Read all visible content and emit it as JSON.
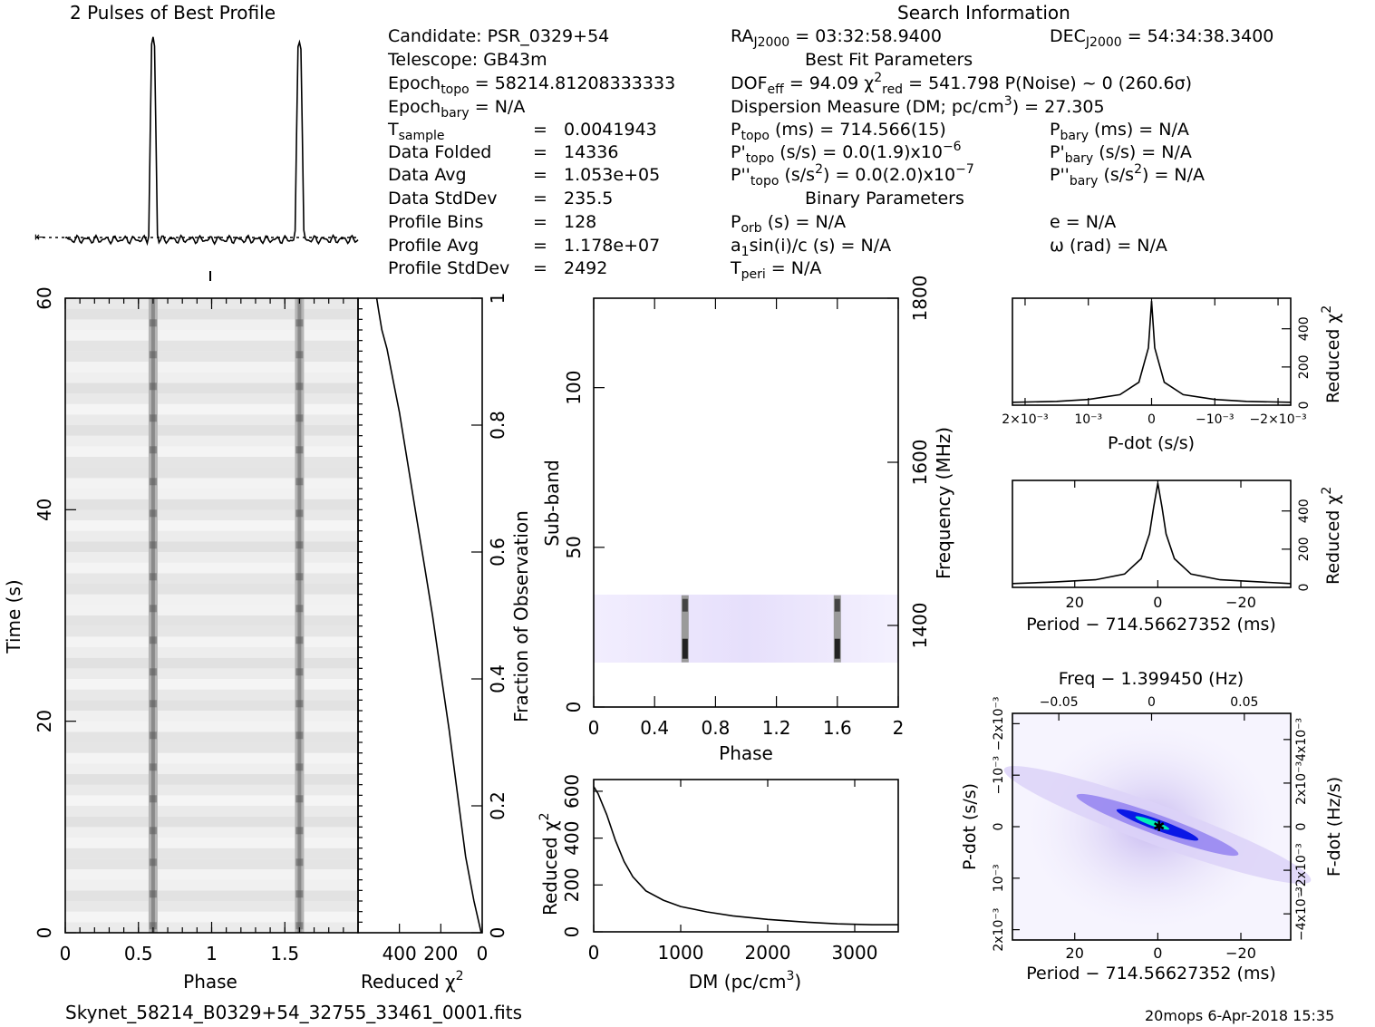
{
  "header": {
    "profile_title": "2 Pulses of Best Profile",
    "search_title": "Search Information",
    "best_fit_title": "Best Fit Parameters",
    "binary_title": "Binary Parameters"
  },
  "candidate_info": {
    "candidate": "Candidate:  PSR_0329+54",
    "telescope": "Telescope:  GB43m",
    "epoch_topo": "Epoch_topo = 58214.81208333333",
    "epoch_bary": "Epoch_bary = N/A",
    "rows": [
      {
        "label": "T_sample",
        "value": "0.0041943"
      },
      {
        "label": "Data Folded",
        "value": "14336"
      },
      {
        "label": "Data Avg",
        "value": "1.053e+05"
      },
      {
        "label": "Data StdDev",
        "value": "235.5"
      },
      {
        "label": "Profile Bins",
        "value": "128"
      },
      {
        "label": "Profile Avg",
        "value": "1.178e+07"
      },
      {
        "label": "Profile StdDev",
        "value": "2492"
      }
    ]
  },
  "search_info": {
    "ra": "RA_J2000 = 03:32:58.9400",
    "dec": "DEC_J2000 = 54:34:38.3400",
    "dof": "DOF_eff = 94.09   χ²_red = 541.798   P(Noise) ~ 0    (260.6σ)",
    "dm": "Dispersion Measure (DM; pc/cm³) = 27.305",
    "p_topo": "P_topo (ms) =  714.566(15)",
    "p_bary": "P_bary (ms) = N/A",
    "pd_topo": "P'_topo (s/s) = 0.0(1.9)x10⁻⁶",
    "pd_bary": "P'_bary (s/s) = N/A",
    "pdd_topo": "P''_topo (s/s²) = 0.0(2.0)x10⁻⁷",
    "pdd_bary": "P''_bary (s/s²) = N/A",
    "p_orb": "P_orb (s) = N/A",
    "e": "e = N/A",
    "a1": "a₁sin(i)/c (s) = N/A",
    "omega": "ω (rad) = N/A",
    "t_peri": "T_peri = N/A"
  },
  "footer": {
    "filename": "Skynet_58214_B0329+54_32755_33461_0001.fits",
    "stamp": "20mops   6-Apr-2018 15:35"
  },
  "chart_data": [
    {
      "id": "pulse-profile",
      "type": "line",
      "title": "2 Pulses of Best Profile",
      "x": [
        0,
        0.2,
        0.4,
        0.55,
        0.6,
        0.65,
        0.8,
        1.0,
        1.2,
        1.4,
        1.55,
        1.6,
        1.65,
        1.8,
        2.0
      ],
      "y": [
        0.05,
        0.06,
        0.05,
        0.1,
        1.0,
        0.1,
        0.05,
        0.06,
        0.05,
        0.06,
        0.1,
        1.0,
        0.1,
        0.05,
        0.06
      ]
    },
    {
      "id": "time-phase",
      "type": "heatmap",
      "xlabel": "Phase",
      "ylabel": "Time (s)",
      "xticks": [
        "0",
        "0.5",
        "1",
        "1.5"
      ],
      "yticks": [
        "0",
        "20",
        "40",
        "60"
      ],
      "xlim": [
        0,
        2
      ],
      "ylim": [
        0,
        60
      ],
      "pulse_phases": [
        0.6,
        1.6
      ]
    },
    {
      "id": "chi-vs-fraction",
      "type": "line",
      "xlabel": "Reduced χ²",
      "ylabel": "Fraction of Observation",
      "xticks": [
        "400",
        "200",
        "0"
      ],
      "yticks": [
        "0",
        "0.2",
        "0.4",
        "0.6",
        "0.8",
        "1"
      ],
      "xlim": [
        600,
        0
      ],
      "ylim": [
        0,
        1
      ],
      "x": [
        5,
        40,
        80,
        120,
        160,
        200,
        240,
        280,
        320,
        360,
        400,
        430,
        460,
        485,
        500,
        510
      ],
      "y": [
        0,
        0.05,
        0.12,
        0.22,
        0.32,
        0.41,
        0.5,
        0.58,
        0.66,
        0.74,
        0.82,
        0.87,
        0.92,
        0.95,
        0.98,
        1.0
      ]
    },
    {
      "id": "subband-phase",
      "type": "heatmap",
      "xlabel": "Phase",
      "ylabel": "Sub-band",
      "y2label": "Frequency (MHz)",
      "xticks": [
        "0",
        "0.4",
        "0.8",
        "1.2",
        "1.6",
        "2"
      ],
      "yticks": [
        "0",
        "50",
        "100"
      ],
      "y2ticks": [
        "1400",
        "1600",
        "1800"
      ],
      "xlim": [
        0,
        2
      ],
      "ylim": [
        0,
        128
      ],
      "active_subbands": [
        14,
        35
      ],
      "pulse_phases": [
        0.6,
        1.6
      ]
    },
    {
      "id": "dm-curve",
      "type": "line",
      "xlabel": "DM (pc/cm³)",
      "ylabel": "Reduced χ²",
      "xticks": [
        "0",
        "1000",
        "2000",
        "3000"
      ],
      "yticks": [
        "0",
        "200",
        "400",
        "600"
      ],
      "xlim": [
        0,
        3500
      ],
      "ylim": [
        0,
        650
      ],
      "x": [
        0,
        50,
        150,
        250,
        350,
        450,
        600,
        800,
        1000,
        1300,
        1600,
        2000,
        2400,
        2800,
        3200,
        3500
      ],
      "y": [
        620,
        590,
        500,
        390,
        300,
        235,
        175,
        135,
        108,
        85,
        68,
        53,
        42,
        34,
        30,
        30
      ]
    },
    {
      "id": "pdot-curve",
      "type": "line",
      "xlabel": "P-dot (s/s)",
      "ylabel": "Reduced χ²",
      "xticks": [
        "2×10⁻³",
        "10⁻³",
        "0",
        "−10⁻³",
        "−2×10⁻³"
      ],
      "yticks": [
        "0",
        "200",
        "400"
      ],
      "xlim": [
        0.0022,
        -0.0022
      ],
      "ylim": [
        0,
        560
      ],
      "x": [
        0.0022,
        0.0015,
        0.001,
        0.0005,
        0.0002,
        5e-05,
        0,
        -5e-05,
        -0.0002,
        -0.0005,
        -0.001,
        -0.0015,
        -0.0022
      ],
      "y": [
        15,
        20,
        30,
        55,
        120,
        300,
        545,
        300,
        120,
        55,
        30,
        20,
        15
      ]
    },
    {
      "id": "period-curve",
      "type": "line",
      "xlabel": "Period − 714.56627352 (ms)",
      "ylabel": "Reduced χ²",
      "xticks": [
        "20",
        "0",
        "−20"
      ],
      "yticks": [
        "0",
        "200",
        "400"
      ],
      "xlim": [
        35,
        -32
      ],
      "ylim": [
        0,
        560
      ],
      "x": [
        35,
        25,
        15,
        8,
        4,
        2,
        1,
        0,
        -1,
        -2,
        -4,
        -8,
        -15,
        -25,
        -32
      ],
      "y": [
        20,
        28,
        40,
        70,
        150,
        280,
        420,
        545,
        420,
        280,
        150,
        70,
        40,
        28,
        20
      ]
    },
    {
      "id": "pdot-period-map",
      "type": "heatmap",
      "title": "Freq − 1.399450 (Hz)",
      "xlabel": "Period − 714.56627352 (ms)",
      "ylabel": "P-dot (s/s)",
      "y2label": "F-dot (Hz/s)",
      "xticks": [
        "20",
        "0",
        "−20"
      ],
      "x2ticks": [
        "−0.05",
        "0",
        "0.05"
      ],
      "yticks": [
        "2x10⁻³",
        "10⁻³",
        "0",
        "−10⁻³",
        "−2x10⁻³"
      ],
      "y2ticks": [
        "−4x10⁻³",
        "−2x10⁻³",
        "0",
        "2x10⁻³",
        "4x10⁻³"
      ],
      "xlim": [
        35,
        -32
      ],
      "ylim": [
        0.0022,
        -0.0022
      ],
      "peak": [
        0,
        0
      ],
      "colors": [
        "#ffffff",
        "#dcd2f8",
        "#0a18e6",
        "#00f0b4"
      ]
    }
  ]
}
